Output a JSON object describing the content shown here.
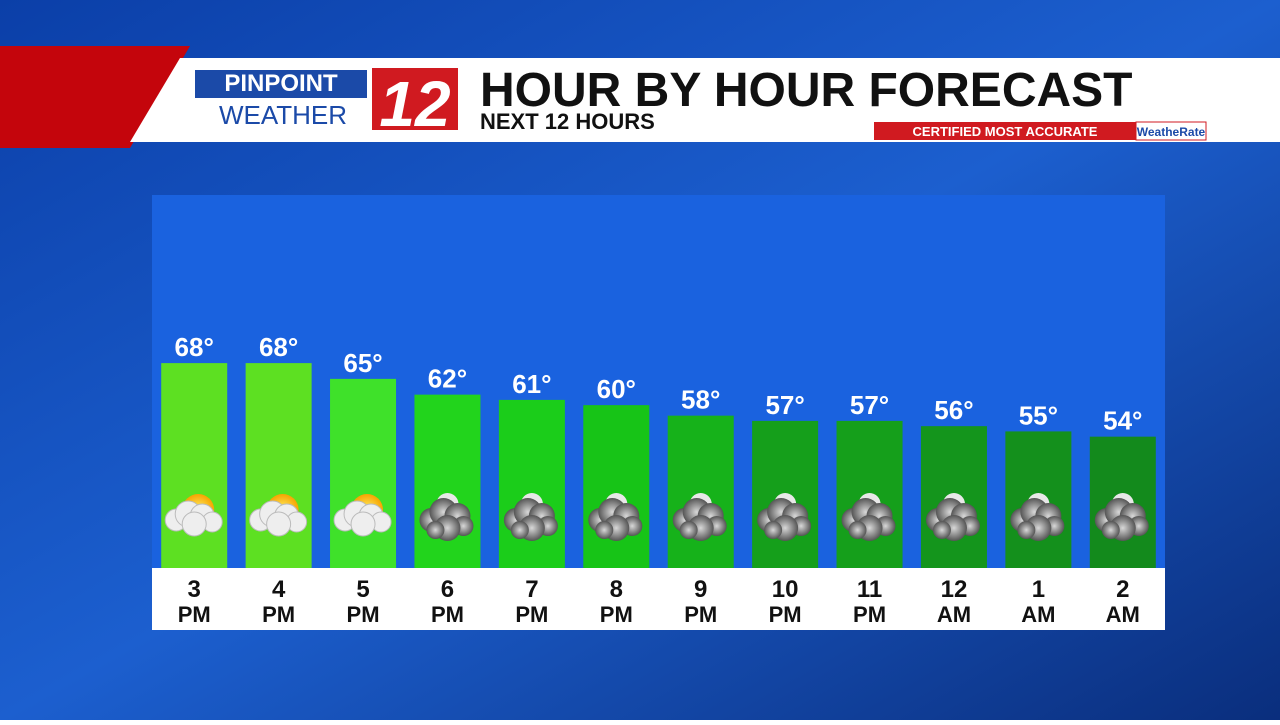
{
  "header": {
    "brand_top": "PINPOINT",
    "brand_bottom": "WEATHER",
    "channel": "12",
    "badge": "CERTIFIED MOST ACCURATE",
    "badge_brand": "WeatheRate"
  },
  "chart_data": {
    "type": "bar",
    "title": "HOUR BY HOUR FORECAST",
    "subtitle": "NEXT 12 HOURS",
    "categories": [
      "3 PM",
      "4 PM",
      "5 PM",
      "6 PM",
      "7 PM",
      "8 PM",
      "9 PM",
      "10 PM",
      "11 PM",
      "12 AM",
      "1 AM",
      "2 AM"
    ],
    "values": [
      68,
      68,
      65,
      62,
      61,
      60,
      58,
      57,
      57,
      56,
      55,
      54
    ],
    "value_labels": [
      "68°",
      "68°",
      "65°",
      "62°",
      "61°",
      "60°",
      "58°",
      "57°",
      "57°",
      "56°",
      "55°",
      "54°"
    ],
    "colors": [
      "#5de022",
      "#5de022",
      "#3fe12a",
      "#22d41c",
      "#1bcd1a",
      "#17c417",
      "#16b21a",
      "#159f1b",
      "#159f1b",
      "#14951c",
      "#14901c",
      "#138a1c"
    ],
    "icons": [
      "sun-cloud",
      "sun-cloud",
      "sun-cloud",
      "cloud-night",
      "cloud-night",
      "cloud-night",
      "cloud-night",
      "cloud-night",
      "cloud-night",
      "cloud-night",
      "cloud-night",
      "cloud-night"
    ],
    "ylim": [
      29,
      100
    ]
  }
}
